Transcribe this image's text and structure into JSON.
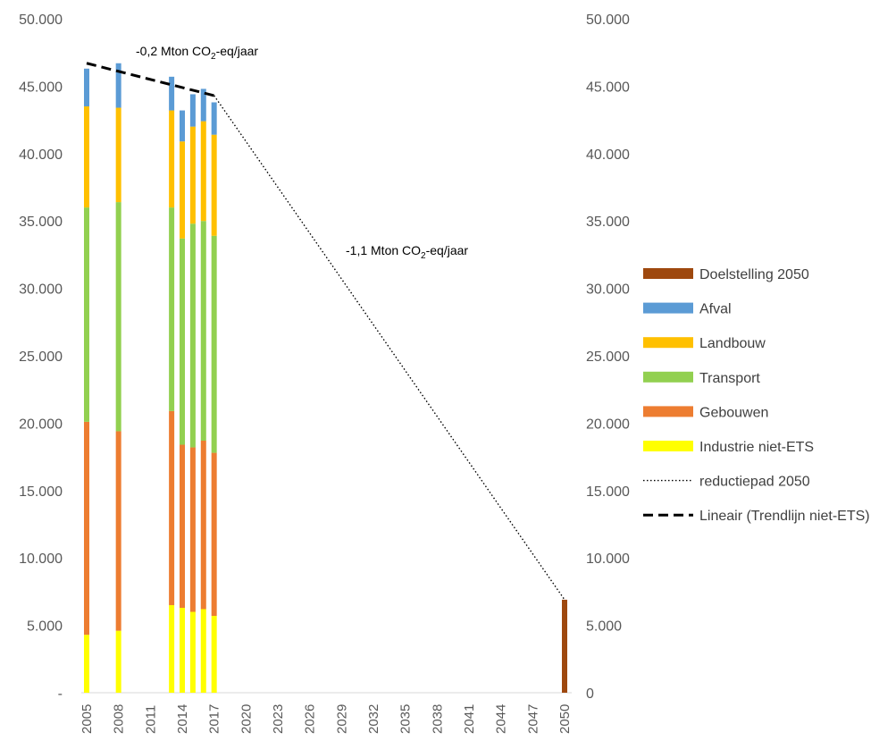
{
  "chart_data": {
    "type": "bar",
    "stacked": true,
    "title": "",
    "xlabel": "",
    "ylabel": "",
    "ylim": [
      0,
      50000
    ],
    "y_ticks": [
      "-",
      "5.000",
      "10.000",
      "15.000",
      "20.000",
      "25.000",
      "30.000",
      "35.000",
      "40.000",
      "45.000",
      "50.000"
    ],
    "y2_ticks": [
      "0",
      "5.000",
      "10.000",
      "15.000",
      "20.000",
      "25.000",
      "30.000",
      "35.000",
      "40.000",
      "45.000",
      "50.000"
    ],
    "x_ticks": [
      "2005",
      "2008",
      "2011",
      "2014",
      "2017",
      "2020",
      "2023",
      "2026",
      "2029",
      "2032",
      "2035",
      "2038",
      "2041",
      "2044",
      "2047",
      "2050"
    ],
    "x_range": [
      2005,
      2050
    ],
    "grid": false,
    "legend_position": "right",
    "categories": [
      "2005",
      "2008",
      "2013",
      "2014",
      "2015",
      "2016",
      "2017",
      "2050"
    ],
    "series": [
      {
        "name": "Industrie niet-ETS",
        "color": "#FFFF00",
        "values": [
          4300,
          4600,
          6500,
          6300,
          6000,
          6200,
          5700,
          0
        ]
      },
      {
        "name": "Gebouwen",
        "color": "#ED7D31",
        "values": [
          15800,
          14800,
          14400,
          12100,
          12200,
          12500,
          12100,
          0
        ]
      },
      {
        "name": "Transport",
        "color": "#92D050",
        "values": [
          15900,
          17000,
          15100,
          15300,
          16600,
          16300,
          16100,
          0
        ]
      },
      {
        "name": "Landbouw",
        "color": "#FFC000",
        "values": [
          7500,
          7000,
          7200,
          7200,
          7200,
          7400,
          7500,
          0
        ]
      },
      {
        "name": "Afval",
        "color": "#5B9BD5",
        "values": [
          2800,
          3300,
          2500,
          2300,
          2400,
          2400,
          2400,
          0
        ]
      },
      {
        "name": "Doelstelling 2050",
        "color": "#9E480E",
        "values": [
          0,
          0,
          0,
          0,
          0,
          0,
          0,
          6900
        ]
      }
    ],
    "lines": [
      {
        "name": "reductiepad 2050",
        "style": "dotted",
        "color": "#000000",
        "x": [
          2017,
          2050
        ],
        "y": [
          44300,
          6900
        ]
      },
      {
        "name": "Lineair (Trendlijn niet-ETS)",
        "style": "dashed",
        "color": "#000000",
        "x": [
          2005,
          2017
        ],
        "y": [
          46700,
          44300
        ]
      }
    ],
    "legend": [
      "Doelstelling 2050",
      "Afval",
      "Landbouw",
      "Transport",
      "Gebouwen",
      "Industrie niet-ETS",
      "reductiepad 2050",
      "Lineair (Trendlijn niet-ETS)"
    ],
    "annotations": [
      {
        "prefix": "-0,2 Mton CO",
        "sub": "2",
        "suffix": "-eq/jaar",
        "near": "dashed"
      },
      {
        "prefix": "-1,1 Mton CO",
        "sub": "2",
        "suffix": "-eq/jaar",
        "near": "dotted"
      }
    ]
  }
}
